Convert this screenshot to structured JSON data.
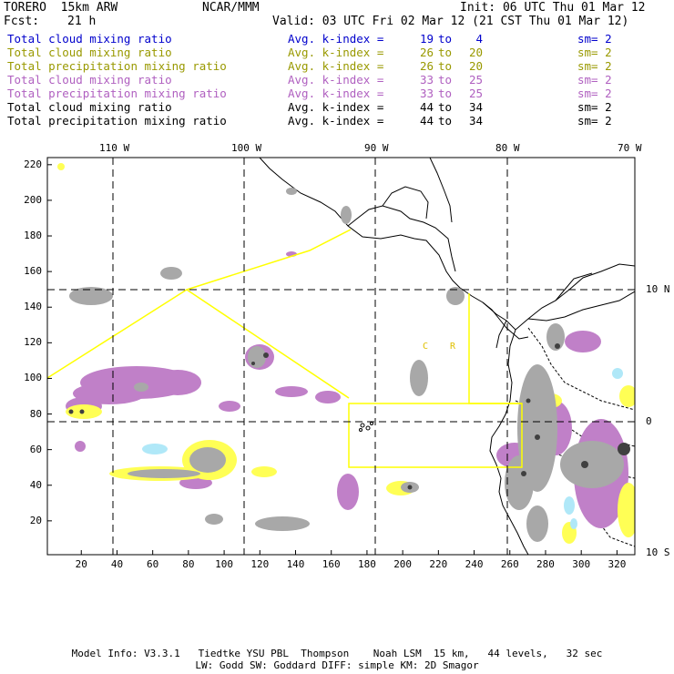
{
  "header": {
    "model": "TORERO  15km ARW",
    "org": "NCAR/MMM",
    "init": "Init: 06 UTC Thu 01 Mar 12",
    "fcst_label": "Fcst:",
    "fcst_value": "21 h",
    "valid": "Valid: 03 UTC Fri 02 Mar 12 (21 CST Thu 01 Mar 12)"
  },
  "legend": [
    {
      "name": "Total cloud mixing ratio",
      "avg": "Avg. k-index =",
      "from": "19",
      "to_word": "to",
      "to": "4",
      "sm": "sm= 2",
      "color": "#0000cc"
    },
    {
      "name": "Total cloud mixing ratio",
      "avg": "Avg. k-index =",
      "from": "26",
      "to_word": "to",
      "to": "20",
      "sm": "sm= 2",
      "color": "#999900"
    },
    {
      "name": "Total precipitation mixing ratio",
      "avg": "Avg. k-index =",
      "from": "26",
      "to_word": "to",
      "to": "20",
      "sm": "sm= 2",
      "color": "#999900"
    },
    {
      "name": "Total cloud mixing ratio",
      "avg": "Avg. k-index =",
      "from": "33",
      "to_word": "to",
      "to": "25",
      "sm": "sm= 2",
      "color": "#b060c0"
    },
    {
      "name": "Total precipitation mixing ratio",
      "avg": "Avg. k-index =",
      "from": "33",
      "to_word": "to",
      "to": "25",
      "sm": "sm= 2",
      "color": "#b060c0"
    },
    {
      "name": "Total cloud mixing ratio",
      "avg": "Avg. k-index =",
      "from": "44",
      "to_word": "to",
      "to": "34",
      "sm": "sm= 2",
      "color": "#000000"
    },
    {
      "name": "Total precipitation mixing ratio",
      "avg": "Avg. k-index =",
      "from": "44",
      "to_word": "to",
      "to": "34",
      "sm": "sm= 2",
      "color": "#000000"
    }
  ],
  "map": {
    "lon_labels": [
      "110 W",
      "100 W",
      "90 W",
      "80 W",
      "70 W"
    ],
    "lat_labels": [
      "10 N",
      "0",
      "10 S"
    ],
    "x_ticks": [
      "20",
      "40",
      "60",
      "80",
      "100",
      "120",
      "140",
      "160",
      "180",
      "200",
      "220",
      "240",
      "260",
      "280",
      "300",
      "320"
    ],
    "y_ticks": [
      "220",
      "200",
      "180",
      "160",
      "140",
      "120",
      "100",
      "80",
      "60",
      "40",
      "20"
    ],
    "region_labels": [
      "C",
      "R"
    ],
    "colors": {
      "gray": "#a8a8a8",
      "dark_gray": "#404040",
      "purple": "#c080c8",
      "yellow": "#ffff55",
      "cyan": "#b0e8f8",
      "domain_line": "#ffff00",
      "coast": "#000000"
    }
  },
  "footer": {
    "line1": "Model Info: V3.3.1   Tiedtke YSU PBL  Thompson    Noah LSM  15 km,   44 levels,   32 sec",
    "line2": "LW: Godd SW: Goddard DIFF: simple KM: 2D Smagor"
  }
}
